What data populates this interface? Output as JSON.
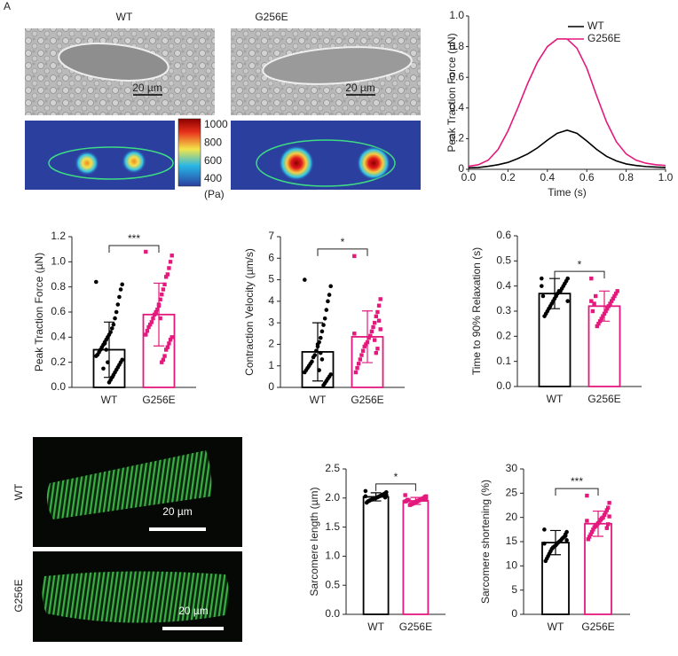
{
  "images": {
    "panel_label": "A",
    "labels": [
      "WT",
      "G256E"
    ],
    "scale_bar": "20 µm",
    "colorbar": {
      "ticks": [
        1000,
        800,
        600,
        400
      ],
      "unit": "(Pa)"
    }
  },
  "chart_data": [
    {
      "type": "line",
      "ylabel": "Peak Traction Force (µN)",
      "xlabel": "Time (s)",
      "x": [
        0,
        0.05,
        0.1,
        0.15,
        0.2,
        0.25,
        0.3,
        0.35,
        0.4,
        0.45,
        0.5,
        0.55,
        0.6,
        0.65,
        0.7,
        0.75,
        0.8,
        0.85,
        0.9,
        0.95,
        1.0
      ],
      "series": [
        {
          "name": "WT",
          "color": "#000000",
          "values": [
            0.01,
            0.012,
            0.02,
            0.03,
            0.045,
            0.07,
            0.1,
            0.14,
            0.19,
            0.235,
            0.255,
            0.235,
            0.185,
            0.13,
            0.085,
            0.055,
            0.035,
            0.025,
            0.018,
            0.015,
            0.012
          ]
        },
        {
          "name": "G256E",
          "color": "#e4197d",
          "values": [
            0.02,
            0.03,
            0.06,
            0.13,
            0.25,
            0.4,
            0.56,
            0.7,
            0.8,
            0.85,
            0.85,
            0.79,
            0.66,
            0.48,
            0.31,
            0.18,
            0.1,
            0.06,
            0.04,
            0.03,
            0.025
          ]
        }
      ],
      "xlim": [
        0,
        1
      ],
      "ylim": [
        0,
        1
      ],
      "xticks": [
        {
          "value": 0,
          "label": "0.0"
        },
        0.2,
        0.4,
        0.6,
        0.8,
        {
          "value": 1,
          "label": "1.0"
        }
      ],
      "yticks": [
        0,
        0.2,
        0.4,
        0.6,
        0.8,
        {
          "value": 1,
          "label": "1.0"
        }
      ],
      "legend": "top-right"
    },
    {
      "type": "bar",
      "ylabel": "Peak Traction Force (µN)",
      "categories": [
        "WT",
        "G256E"
      ],
      "colors": [
        "#000000",
        "#e4197d"
      ],
      "values": [
        0.3,
        0.58
      ],
      "errors": [
        0.22,
        0.25
      ],
      "significance": "***",
      "points": [
        [
          0.84,
          0.82,
          0.78,
          0.72,
          0.66,
          0.6,
          0.55,
          0.5,
          0.47,
          0.44,
          0.42,
          0.4,
          0.38,
          0.36,
          0.34,
          0.32,
          0.3,
          0.28,
          0.26,
          0.25,
          0.22,
          0.2,
          0.18,
          0.16,
          0.14,
          0.12,
          0.1,
          0.08,
          0.06,
          0.04,
          0.2,
          0.3,
          0.35,
          0.15
        ],
        [
          1.08,
          1.05,
          1.0,
          0.95,
          0.9,
          0.88,
          0.82,
          0.78,
          0.74,
          0.7,
          0.66,
          0.62,
          0.6,
          0.58,
          0.55,
          0.52,
          0.5,
          0.48,
          0.45,
          0.42,
          0.4,
          0.38,
          0.35,
          0.32,
          0.3,
          0.25,
          0.22,
          0.2,
          0.55,
          0.65
        ]
      ],
      "ylim": [
        0,
        1.2
      ],
      "yticks": [
        {
          "value": 0,
          "label": "0.0"
        },
        0.2,
        0.4,
        0.6,
        0.8,
        {
          "value": 1,
          "label": "1.0"
        },
        1.2
      ]
    },
    {
      "type": "bar",
      "ylabel": "Contraction Velocity (µm/s)",
      "categories": [
        "WT",
        "G256E"
      ],
      "colors": [
        "#000000",
        "#e4197d"
      ],
      "values": [
        1.65,
        2.35
      ],
      "errors": [
        1.35,
        1.2
      ],
      "significance": "*",
      "points": [
        [
          5.0,
          4.7,
          4.3,
          4.0,
          3.6,
          3.2,
          2.9,
          2.6,
          2.3,
          2.1,
          1.9,
          1.7,
          1.5,
          1.4,
          1.2,
          1.1,
          1.0,
          0.9,
          0.8,
          0.7,
          0.6,
          0.5,
          0.4,
          0.3,
          0.2,
          0.1,
          1.3,
          1.6,
          0.8,
          2.0
        ],
        [
          6.1,
          4.1,
          3.8,
          3.5,
          3.3,
          3.0,
          2.8,
          2.6,
          2.4,
          2.3,
          2.1,
          2.0,
          1.9,
          1.7,
          1.5,
          1.3,
          1.1,
          0.9,
          0.7,
          2.5,
          2.7,
          3.1,
          1.8,
          1.6,
          2.2
        ]
      ],
      "ylim": [
        0,
        7
      ],
      "yticks": [
        0,
        1,
        2,
        3,
        4,
        5,
        6,
        7
      ]
    },
    {
      "type": "bar",
      "ylabel": "Time to 90% Relaxation (s)",
      "categories": [
        "WT",
        "G256E"
      ],
      "colors": [
        "#000000",
        "#e4197d"
      ],
      "values": [
        0.37,
        0.32
      ],
      "errors": [
        0.06,
        0.06
      ],
      "significance": "*",
      "points": [
        [
          0.43,
          0.43,
          0.42,
          0.41,
          0.4,
          0.39,
          0.38,
          0.38,
          0.37,
          0.36,
          0.35,
          0.34,
          0.33,
          0.32,
          0.31,
          0.3,
          0.29,
          0.28,
          0.36,
          0.4,
          0.34
        ],
        [
          0.43,
          0.38,
          0.37,
          0.36,
          0.35,
          0.34,
          0.33,
          0.32,
          0.31,
          0.3,
          0.29,
          0.28,
          0.27,
          0.26,
          0.25,
          0.24,
          0.36,
          0.33,
          0.3,
          0.34
        ]
      ],
      "ylim": [
        0,
        0.6
      ],
      "yticks": [
        {
          "value": 0,
          "label": "0.0"
        },
        0.1,
        0.2,
        0.3,
        0.4,
        0.5,
        0.6
      ]
    },
    {
      "type": "bar",
      "ylabel": "Sarcomere length (µm)",
      "categories": [
        "WT",
        "G256E"
      ],
      "colors": [
        "#000000",
        "#e4197d"
      ],
      "values": [
        2.02,
        1.95
      ],
      "errors": [
        0.07,
        0.06
      ],
      "significance": "*",
      "points": [
        [
          2.12,
          2.1,
          2.08,
          2.07,
          2.06,
          2.05,
          2.04,
          2.03,
          2.02,
          2.01,
          2.0,
          2.0,
          1.99,
          1.98,
          1.97,
          1.96,
          1.95,
          1.94,
          1.92,
          2.03,
          2.05,
          2.01
        ],
        [
          2.05,
          2.03,
          2.02,
          2.0,
          1.99,
          1.98,
          1.97,
          1.96,
          1.95,
          1.94,
          1.93,
          1.92,
          1.91,
          1.9,
          1.89,
          1.88,
          1.96,
          1.97,
          1.95,
          1.94,
          1.98
        ]
      ],
      "ylim": [
        0,
        2.5
      ],
      "yticks": [
        {
          "value": 0,
          "label": "0.0"
        },
        0.5,
        {
          "value": 1,
          "label": "1.0"
        },
        1.5,
        {
          "value": 2,
          "label": "2.0"
        },
        2.5
      ]
    },
    {
      "type": "bar",
      "ylabel": "Sarcomere shortening (%)",
      "categories": [
        "WT",
        "G256E"
      ],
      "colors": [
        "#000000",
        "#e4197d"
      ],
      "values": [
        14.8,
        18.7
      ],
      "errors": [
        2.5,
        2.6
      ],
      "significance": "***",
      "points": [
        [
          17.5,
          17,
          16.5,
          16,
          15.8,
          15.5,
          15.2,
          15,
          14.8,
          14.5,
          14.2,
          14,
          13.8,
          13.5,
          13,
          12.5,
          12,
          11.5,
          11,
          14.6,
          15.3,
          16.2
        ],
        [
          24.5,
          23,
          22,
          21.5,
          21,
          20.5,
          20,
          19.8,
          19.5,
          19,
          18.8,
          18.5,
          18.2,
          18,
          17.5,
          17,
          16.5,
          16,
          15.5,
          19.3,
          20.2,
          18.6,
          17.8
        ]
      ],
      "ylim": [
        0,
        30
      ],
      "yticks": [
        0,
        5,
        10,
        15,
        20,
        25,
        30
      ]
    }
  ]
}
